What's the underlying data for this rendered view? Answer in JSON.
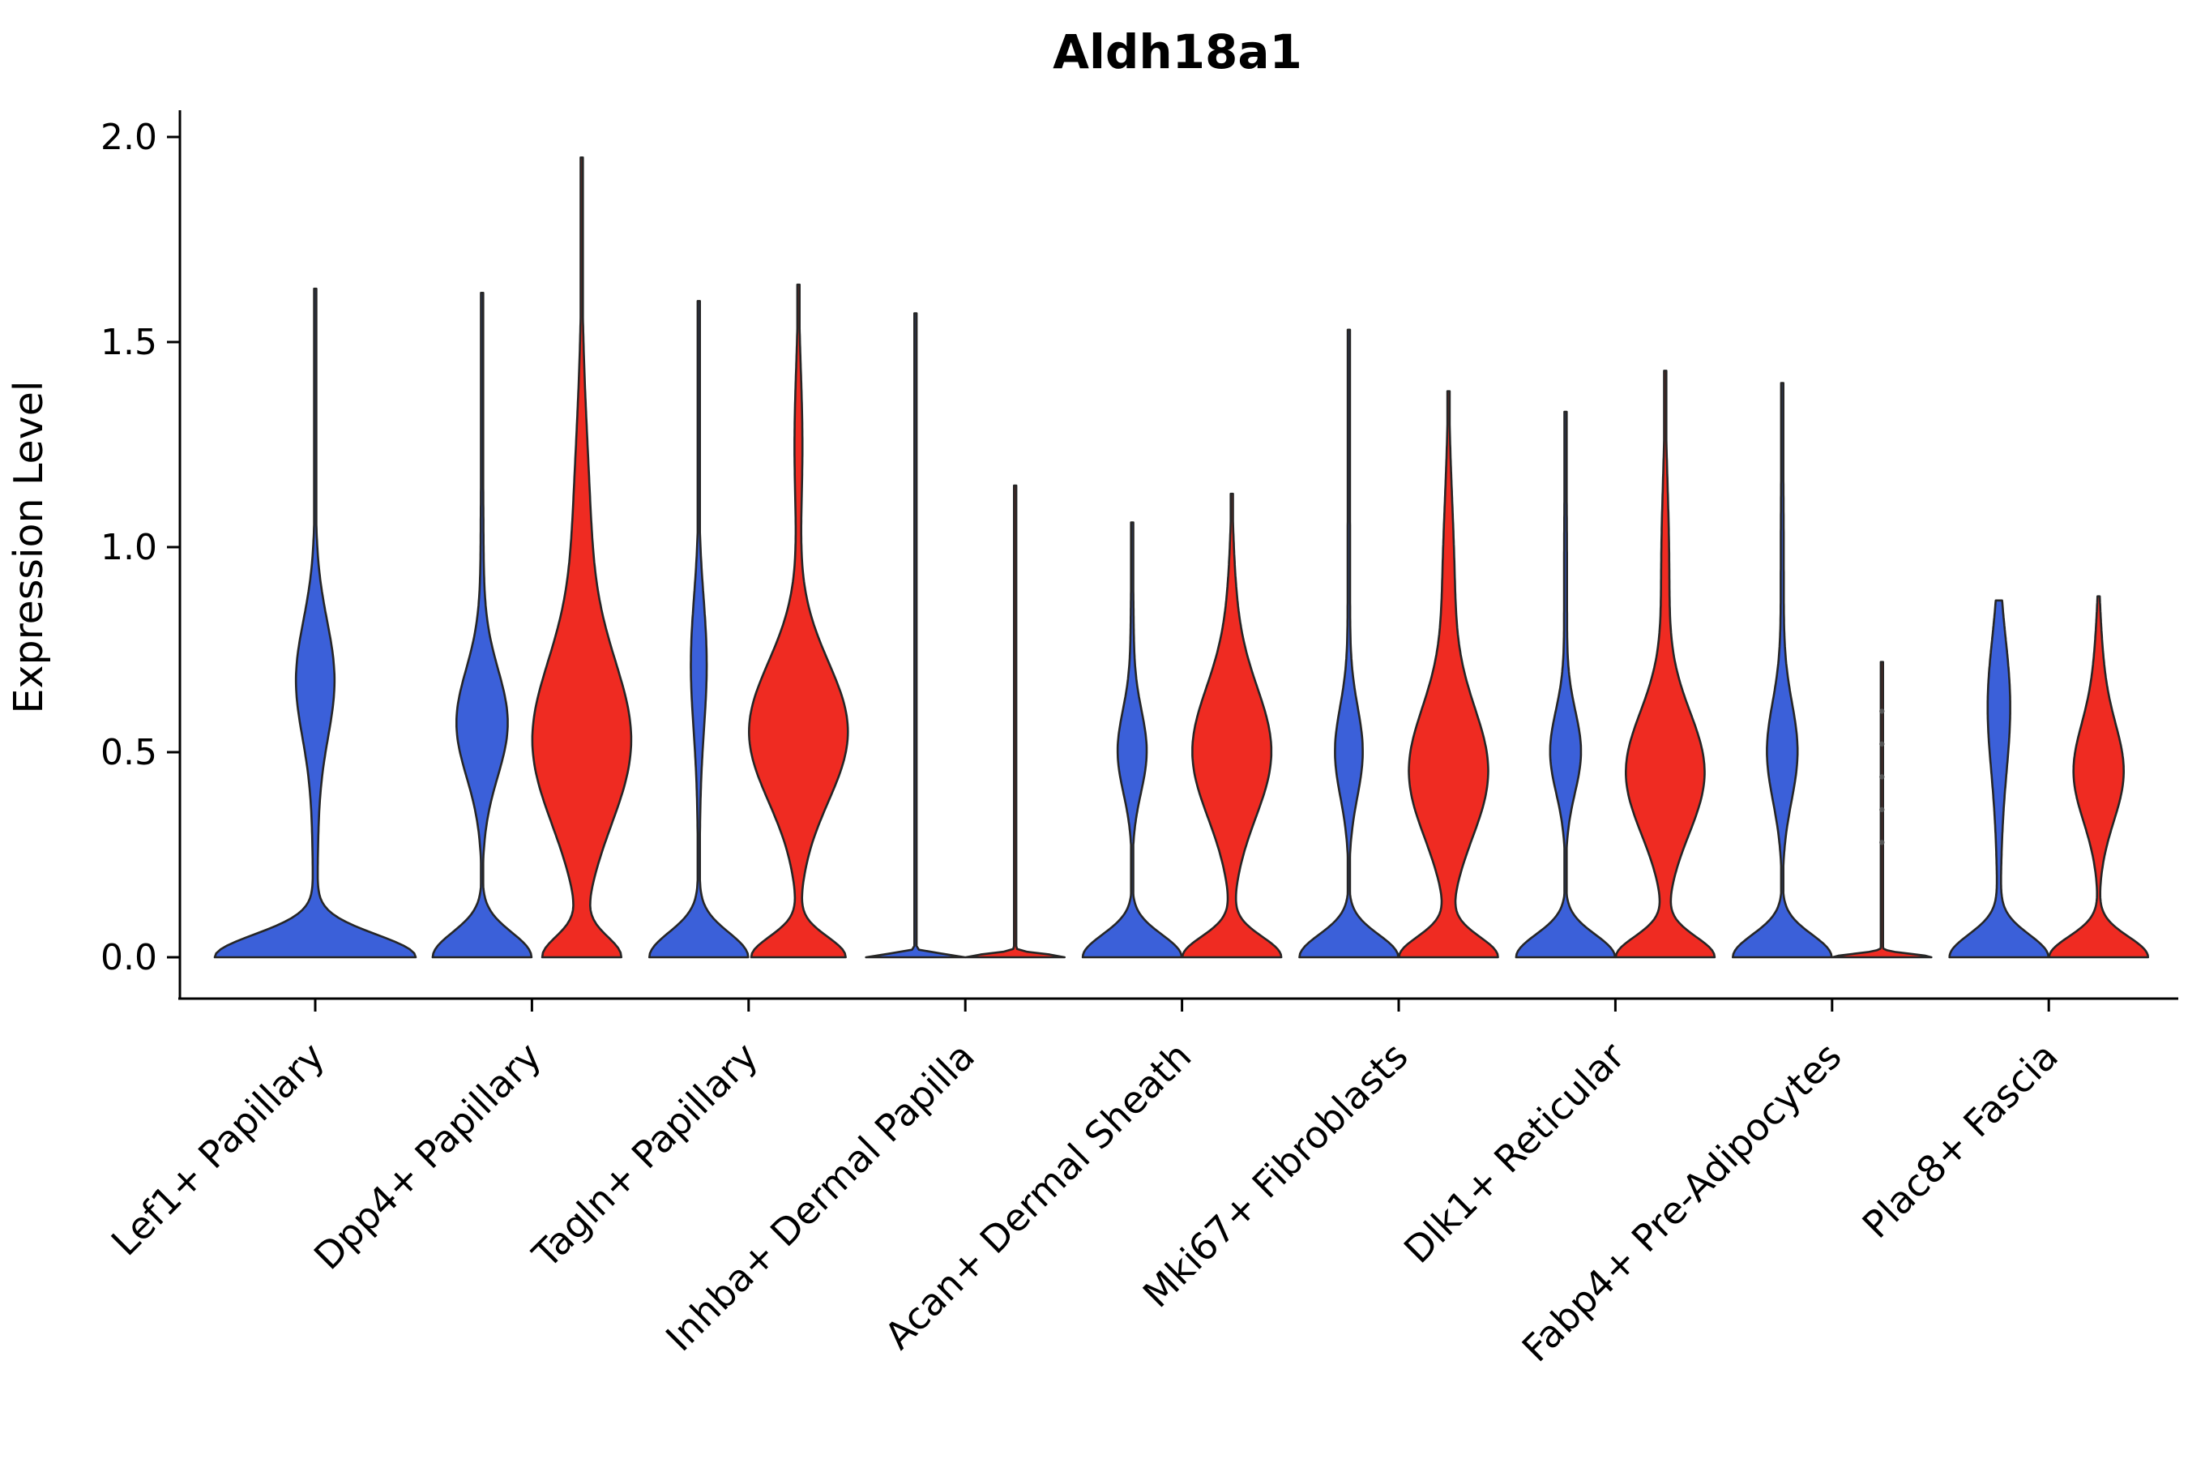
{
  "title_text": "Aldh18a1",
  "colors": {
    "blue": "#3B60D9",
    "red": "#EF2B22",
    "outline": "#262626",
    "axis": "#000000",
    "point": "#555555"
  },
  "chart_data": {
    "type": "violin",
    "title": "Aldh18a1",
    "ylabel": "Expression Level",
    "ylim": [
      0,
      2
    ],
    "ytick_values": [
      0.0,
      0.5,
      1.0,
      1.5,
      2.0
    ],
    "ytick_labels": [
      "0.0",
      "0.5",
      "1.0",
      "1.5",
      "2.0"
    ],
    "grid": false,
    "legend": "none",
    "split_colors": [
      "blue",
      "red"
    ],
    "categories": [
      "Lef1+ Papillary",
      "Dpp4+ Papillary",
      "Tagln+ Papillary",
      "Inhba+ Dermal Papilla",
      "Acan+ Dermal Sheath",
      "Mki67+ Fibroblasts",
      "Dlk1+ Reticular",
      "Fabp4+ Pre-Adipocytes",
      "Plac8+ Fascia"
    ],
    "violins": [
      {
        "category": "Lef1+ Papillary",
        "series": [
          {
            "color": "blue",
            "side": "center",
            "width": "full",
            "max": 1.63,
            "shape": [
              [
                0,
                0.055,
                1.0
              ],
              [
                0.68,
                0.14,
                0.17
              ],
              [
                0.45,
                0.35,
                0.03
              ]
            ]
          }
        ]
      },
      {
        "category": "Dpp4+ Papillary",
        "series": [
          {
            "color": "blue",
            "side": "left",
            "width": "half",
            "max": 1.62,
            "shape": [
              [
                0,
                0.06,
                1.0
              ],
              [
                0.57,
                0.13,
                0.5
              ],
              [
                0.9,
                0.35,
                0.03
              ]
            ]
          },
          {
            "color": "red",
            "side": "right",
            "width": "half",
            "max": 1.95,
            "shape": [
              [
                0,
                0.05,
                0.8
              ],
              [
                0.52,
                0.2,
                1.0
              ],
              [
                1.0,
                0.28,
                0.18
              ]
            ]
          }
        ]
      },
      {
        "category": "Tagln+ Papillary",
        "series": [
          {
            "color": "blue",
            "side": "left",
            "width": "half",
            "max": 1.6,
            "shape": [
              [
                0,
                0.06,
                1.0
              ],
              [
                0.72,
                0.16,
                0.15
              ],
              [
                0.4,
                0.3,
                0.02
              ]
            ]
          },
          {
            "color": "red",
            "side": "right",
            "width": "half",
            "max": 1.64,
            "shape": [
              [
                0,
                0.05,
                0.95
              ],
              [
                0.55,
                0.17,
                1.0
              ],
              [
                1.25,
                0.18,
                0.08
              ]
            ]
          }
        ]
      },
      {
        "category": "Inhba+ Dermal Papilla",
        "series": [
          {
            "color": "blue",
            "side": "left",
            "width": "half",
            "max": 1.57,
            "line": true,
            "shape": [
              [
                0,
                0.008,
                1.0
              ]
            ]
          },
          {
            "color": "red",
            "side": "right",
            "width": "half",
            "max": 1.15,
            "line": true,
            "shape": [
              [
                0,
                0.008,
                1.0
              ]
            ]
          }
        ]
      },
      {
        "category": "Acan+ Dermal Sheath",
        "series": [
          {
            "color": "blue",
            "side": "left",
            "width": "half",
            "max": 1.06,
            "shape": [
              [
                0,
                0.055,
                1.0
              ],
              [
                0.5,
                0.1,
                0.28
              ],
              [
                0.75,
                0.2,
                0.03
              ]
            ]
          },
          {
            "color": "red",
            "side": "right",
            "width": "half",
            "max": 1.13,
            "shape": [
              [
                0,
                0.05,
                1.0
              ],
              [
                0.5,
                0.16,
                0.8
              ],
              [
                0.85,
                0.15,
                0.06
              ]
            ]
          }
        ]
      },
      {
        "category": "Mki67+ Fibroblasts",
        "series": [
          {
            "color": "blue",
            "side": "left",
            "width": "half",
            "max": 1.53,
            "shape": [
              [
                0,
                0.055,
                1.0
              ],
              [
                0.5,
                0.11,
                0.27
              ],
              [
                0.95,
                0.35,
                0.025
              ]
            ]
          },
          {
            "color": "red",
            "side": "right",
            "width": "half",
            "max": 1.38,
            "shape": [
              [
                0,
                0.05,
                1.0
              ],
              [
                0.45,
                0.16,
                0.8
              ],
              [
                0.9,
                0.22,
                0.12
              ]
            ]
          }
        ]
      },
      {
        "category": "Dlk1+ Reticular",
        "series": [
          {
            "color": "blue",
            "side": "left",
            "width": "half",
            "max": 1.33,
            "shape": [
              [
                0,
                0.055,
                1.0
              ],
              [
                0.5,
                0.1,
                0.3
              ],
              [
                0.9,
                0.3,
                0.03
              ]
            ]
          },
          {
            "color": "red",
            "side": "right",
            "width": "half",
            "max": 1.43,
            "shape": [
              [
                0,
                0.05,
                1.0
              ],
              [
                0.45,
                0.15,
                0.8
              ],
              [
                0.95,
                0.2,
                0.08
              ]
            ]
          }
        ]
      },
      {
        "category": "Fabp4+ Pre-Adipocytes",
        "series": [
          {
            "color": "blue",
            "side": "left",
            "width": "half",
            "max": 1.4,
            "shape": [
              [
                0,
                0.055,
                1.0
              ],
              [
                0.5,
                0.12,
                0.3
              ],
              [
                0.95,
                0.3,
                0.03
              ]
            ]
          },
          {
            "color": "red",
            "side": "right",
            "width": "half",
            "max": 0.72,
            "line": true,
            "shape": [
              [
                0,
                0.008,
                1.0
              ]
            ],
            "points": [
              0.28,
              0.36,
              0.44,
              0.52,
              0.6
            ]
          }
        ]
      },
      {
        "category": "Plac8+ Fascia",
        "series": [
          {
            "color": "blue",
            "side": "left",
            "width": "half",
            "max": 0.87,
            "shape": [
              [
                0,
                0.055,
                1.0
              ],
              [
                0.62,
                0.16,
                0.22
              ],
              [
                0.3,
                0.2,
                0.04
              ]
            ]
          },
          {
            "color": "red",
            "side": "right",
            "width": "half",
            "max": 0.88,
            "shape": [
              [
                0,
                0.05,
                1.0
              ],
              [
                0.45,
                0.12,
                0.5
              ],
              [
                0.7,
                0.12,
                0.07
              ]
            ]
          }
        ]
      }
    ]
  }
}
